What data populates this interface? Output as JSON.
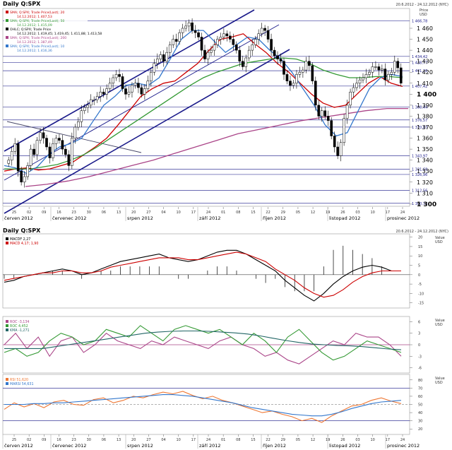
{
  "header": {
    "title": "Daily Q:SPX",
    "date_range": "20.6.2012 - 24.12.2012 (NYC)",
    "price_axis_title": "Price",
    "price_axis_unit": "USD"
  },
  "legend": [
    {
      "text": "SMA; Q:SPX; Trade Price(Last); 20",
      "color": "#cc0000"
    },
    {
      "text": "14.12.2012; 1.407,53",
      "color": "#cc0000"
    },
    {
      "text": "SMA; Q:SPX; Trade Price(Last); 50",
      "color": "#339933"
    },
    {
      "text": "14.12.2012; 1.415,09",
      "color": "#339933"
    },
    {
      "text": "OHLC; Q:SPX; Trade Price",
      "color": "#000000"
    },
    {
      "text": "14.12.2012; 1.419,45; 1.419,45; 1.411,88; 1.413,58",
      "color": "#000000"
    },
    {
      "text": "SMA; Q:SPX; Trade Price(Last); 200",
      "color": "#aa4488"
    },
    {
      "text": "14.12.2012; 1.387,49",
      "color": "#aa4488"
    },
    {
      "text": "SMA; Q:SPX; Trade Price(Last); 10",
      "color": "#3377cc"
    },
    {
      "text": "14.12.2012; 1.416,36",
      "color": "#3377cc"
    }
  ],
  "x_axis": {
    "day_ticks": [
      "25",
      "02",
      "09",
      "16",
      "23",
      "30",
      "06",
      "13",
      "20",
      "27",
      "04",
      "10",
      "17",
      "24",
      "01",
      "08",
      "15",
      "22",
      "29",
      "05",
      "12",
      "19",
      "26",
      "03",
      "10",
      "17",
      "24"
    ],
    "month_labels": [
      "červen 2012",
      "červenec 2012",
      "srpen 2012",
      "září 2012",
      "říjen 2012",
      "listopad 2012",
      "prosinec 2012"
    ]
  },
  "price_ticks": [
    "1 460",
    "1 450",
    "1 440",
    "1 430",
    "1 420",
    "1 410",
    "1 400",
    "1 390",
    "1 380",
    "1 370",
    "1 360",
    "1 350",
    "1 340",
    "1 330",
    "1 320",
    "1 310",
    "1 300"
  ],
  "horizontal_levels": [
    "1 466,78",
    "1 434,42",
    "1 428,77",
    "1 421,36",
    "1 407,42",
    "1 388,44",
    "1 376,57",
    "1 370,07",
    "1 343,97",
    "1 331,68",
    "1 326,96",
    "1 312,56",
    "1 300,73"
  ],
  "macd_panel": {
    "title": "Daily Q:SPX",
    "date_range": "20.6.2012 - 24.12.2012 (NYC)",
    "legend": [
      {
        "text": "MACDF 2,27",
        "color": "#000000"
      },
      {
        "text": "MACD 4,17; 1,90",
        "color": "#cc0000"
      }
    ],
    "axis_title": "Value",
    "axis_unit": "USD",
    "ticks": [
      "20",
      "15",
      "10",
      "5",
      "0",
      "-5",
      "-10",
      "-15"
    ]
  },
  "roc_panel": {
    "legend": [
      {
        "text": "ROC -3,134",
        "color": "#aa4488"
      },
      {
        "text": "ROC 4,452",
        "color": "#339933"
      },
      {
        "text": "KMA -1,271",
        "color": "#226666"
      }
    ],
    "axis_title": "Value",
    "axis_unit": "USD",
    "ticks": [
      "6",
      "3",
      "0",
      "-3",
      "-6"
    ]
  },
  "rsi_panel": {
    "legend": [
      {
        "text": "RSI 51,620",
        "color": "#ee7733"
      },
      {
        "text": "MARSI 54,631",
        "color": "#3377cc"
      }
    ],
    "axis_title": "Value",
    "axis_unit": "USD",
    "ticks": [
      "80",
      "70",
      "60",
      "50",
      "40",
      "30",
      "20"
    ]
  },
  "chart_data": [
    {
      "type": "candlestick",
      "title": "Daily Q:SPX",
      "y_range": [
        1298,
        1478
      ],
      "series": [
        {
          "name": "OHLC Q:SPX",
          "close": [
            1340,
            1348,
            1355,
            1330,
            1320,
            1325,
            1335,
            1350,
            1345,
            1358,
            1365,
            1360,
            1352,
            1342,
            1355,
            1360,
            1358,
            1350,
            1345,
            1335,
            1360,
            1370,
            1375,
            1385,
            1388,
            1390,
            1395,
            1395,
            1398,
            1402,
            1400,
            1405,
            1410,
            1415,
            1418,
            1416,
            1405,
            1400,
            1402,
            1408,
            1410,
            1406,
            1400,
            1405,
            1412,
            1420,
            1428,
            1432,
            1436,
            1430,
            1438,
            1445,
            1450,
            1448,
            1456,
            1460,
            1462,
            1465,
            1458,
            1456,
            1452,
            1440,
            1432,
            1438,
            1440,
            1445,
            1450,
            1452,
            1455,
            1453,
            1450,
            1445,
            1440,
            1430,
            1425,
            1433,
            1440,
            1445,
            1450,
            1455,
            1460,
            1458,
            1450,
            1440,
            1435,
            1432,
            1430,
            1418,
            1412,
            1408,
            1410,
            1418,
            1420,
            1422,
            1430,
            1426,
            1412,
            1390,
            1380,
            1385,
            1380,
            1376,
            1362,
            1352,
            1344,
            1356,
            1378,
            1390,
            1402,
            1406,
            1410,
            1413,
            1415,
            1418,
            1420,
            1425,
            1425,
            1422,
            1423,
            1413,
            1418,
            1420,
            1430,
            1424,
            1410
          ]
        },
        {
          "name": "SMA 20",
          "values": [
            1330,
            1332,
            1333,
            1331,
            1332,
            1335,
            1338,
            1345,
            1352,
            1360,
            1372,
            1385,
            1398,
            1405,
            1410,
            1412,
            1420,
            1428,
            1440,
            1450,
            1452,
            1455,
            1446,
            1438,
            1428,
            1420,
            1410,
            1400,
            1392,
            1388,
            1390,
            1400,
            1410,
            1416,
            1410,
            1407
          ]
        },
        {
          "name": "SMA 50",
          "values": [
            1332,
            1332,
            1332,
            1334,
            1336,
            1340,
            1345,
            1352,
            1360,
            1368,
            1376,
            1384,
            1392,
            1400,
            1408,
            1415,
            1420,
            1424,
            1428,
            1430,
            1432,
            1433,
            1432,
            1428,
            1422,
            1418,
            1415,
            1415,
            1416,
            1416,
            1415
          ]
        },
        {
          "name": "SMA 200",
          "values": [
            1316,
            1318,
            1321,
            1325,
            1330,
            1335,
            1340,
            1346,
            1352,
            1358,
            1364,
            1368,
            1372,
            1376,
            1379,
            1382,
            1385,
            1387,
            1387
          ]
        },
        {
          "name": "SMA 10",
          "values": [
            1335,
            1333,
            1328,
            1334,
            1345,
            1352,
            1355,
            1360,
            1375,
            1390,
            1398,
            1408,
            1410,
            1408,
            1415,
            1432,
            1450,
            1458,
            1458,
            1448,
            1438,
            1445,
            1452,
            1450,
            1440,
            1432,
            1420,
            1405,
            1390,
            1372,
            1362,
            1365,
            1385,
            1405,
            1415,
            1418,
            1416
          ]
        }
      ]
    },
    {
      "type": "line",
      "title": "MACD",
      "y_range": [
        -17,
        21
      ],
      "series": [
        {
          "name": "MACDF",
          "values": [
            -4,
            -3,
            -1,
            0,
            1,
            2,
            3,
            2,
            0,
            1,
            3,
            5,
            7,
            8,
            9,
            10,
            11,
            9,
            8,
            7,
            8,
            10,
            12,
            13,
            13,
            11,
            8,
            5,
            2,
            -3,
            -7,
            -11,
            -14,
            -10,
            -5,
            -1,
            2,
            4,
            5,
            4,
            2,
            2
          ]
        },
        {
          "name": "MACD",
          "values": [
            -3,
            -2,
            -1,
            0,
            1,
            1,
            2,
            2,
            1,
            1,
            2,
            4,
            5,
            6,
            7,
            8,
            9,
            9,
            9,
            8,
            8,
            9,
            10,
            11,
            12,
            11,
            9,
            7,
            3,
            0,
            -3,
            -7,
            -10,
            -12,
            -11,
            -8,
            -4,
            -1,
            1,
            2,
            2,
            2
          ]
        }
      ]
    },
    {
      "type": "line",
      "title": "ROC",
      "y_range": [
        -7,
        7
      ],
      "series": [
        {
          "name": "ROC -3,134",
          "values": [
            0,
            3,
            -1,
            2,
            -3,
            1,
            2,
            -2,
            0,
            3,
            1,
            0,
            -1,
            1,
            0,
            2,
            1,
            0,
            -1,
            1,
            2,
            0,
            -1,
            -3,
            -2,
            -4,
            -5,
            -3,
            -1,
            1,
            0,
            3,
            2,
            2,
            0,
            -3
          ]
        },
        {
          "name": "ROC 4,452",
          "values": [
            -2,
            -1,
            -3,
            -2,
            1,
            3,
            2,
            0,
            1,
            4,
            3,
            2,
            5,
            3,
            1,
            4,
            5,
            4,
            3,
            4,
            2,
            0,
            3,
            1,
            -2,
            2,
            4,
            1,
            -2,
            -4,
            -3,
            -1,
            1,
            0,
            -1,
            -2
          ]
        },
        {
          "name": "KMA",
          "values": [
            -1,
            -1,
            -1,
            -1,
            -0.5,
            0,
            0.5,
            1,
            1.5,
            2,
            2.5,
            3,
            3.3,
            3.5,
            3.6,
            3.6,
            3.5,
            3.3,
            3.1,
            2.8,
            2.3,
            1.7,
            1.1,
            0.6,
            0.2,
            0,
            -0.2,
            -0.3,
            -0.5,
            -0.8,
            -1.1,
            -1.3
          ]
        }
      ]
    },
    {
      "type": "line",
      "title": "RSI",
      "y_range": [
        15,
        85
      ],
      "series": [
        {
          "name": "RSI",
          "values": [
            44,
            52,
            47,
            51,
            46,
            53,
            55,
            50,
            49,
            56,
            58,
            52,
            55,
            60,
            58,
            62,
            65,
            63,
            66,
            61,
            57,
            60,
            55,
            52,
            48,
            44,
            40,
            42,
            38,
            35,
            30,
            33,
            28,
            36,
            42,
            48,
            50,
            55,
            58,
            54,
            51
          ]
        },
        {
          "name": "MARSI",
          "values": [
            50,
            50,
            50,
            51,
            51,
            52,
            52,
            53,
            54,
            55,
            56,
            57,
            58,
            59,
            60,
            61,
            62,
            62,
            61,
            60,
            58,
            56,
            54,
            52,
            49,
            46,
            44,
            42,
            40,
            38,
            37,
            36,
            36,
            38,
            41,
            45,
            48,
            51,
            53,
            54,
            55
          ]
        }
      ]
    }
  ]
}
